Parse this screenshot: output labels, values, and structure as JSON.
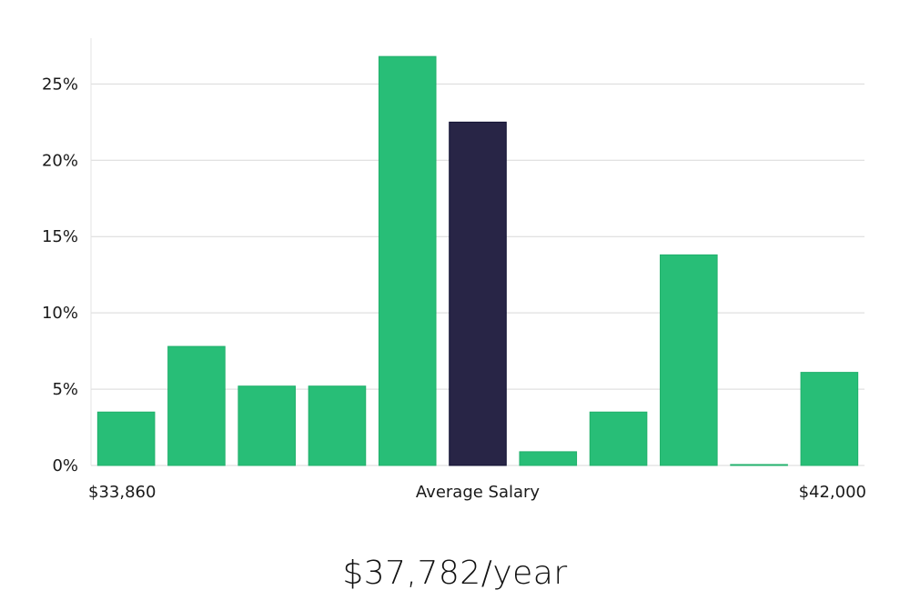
{
  "chart_data": {
    "type": "bar",
    "values": [
      3.5,
      7.8,
      5.2,
      5.2,
      26.8,
      22.5,
      0.9,
      3.5,
      13.8,
      0.05,
      6.1
    ],
    "highlight_index": 5,
    "ylim": [
      0,
      28
    ],
    "yticks": [
      0,
      5,
      10,
      15,
      20,
      25
    ],
    "ytick_labels": [
      "0%",
      "5%",
      "10%",
      "15%",
      "20%",
      "25%"
    ],
    "grid": true,
    "x_labels": {
      "left": "$33,860",
      "center": "Average Salary",
      "right": "$42,000"
    },
    "colors": {
      "bar": "#28be77",
      "bar_edge": "#22b06c",
      "highlight": "#282546",
      "highlight_edge": "#111133",
      "grid": "#d9d9d9",
      "axis": "#e3e3e3"
    }
  },
  "summary": {
    "headline": "$37,782/year"
  }
}
